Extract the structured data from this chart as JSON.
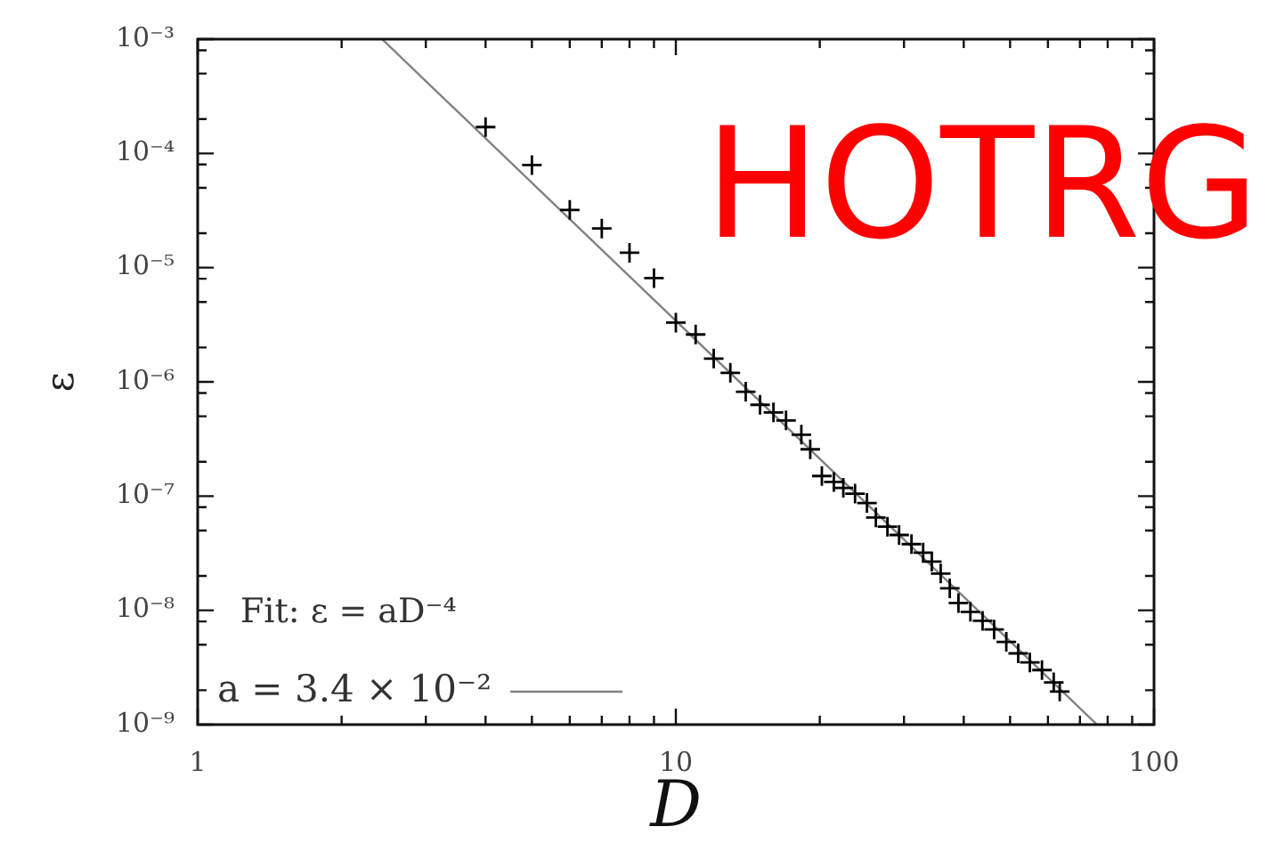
{
  "chart_data": {
    "type": "scatter",
    "xlabel": "D",
    "ylabel": "ε",
    "legend_title": "Fit: ε = aD⁻⁴",
    "legend": "bottom left",
    "annotations": [
      "HOTRG"
    ],
    "log": "xy",
    "grid": false,
    "marker": "cross",
    "xlim": [
      1,
      100
    ],
    "xticks": [
      1,
      {
        "value": 2,
        "label": null
      },
      {
        "value": 3,
        "label": null
      },
      {
        "value": 4,
        "label": null
      },
      {
        "value": 5,
        "label": null
      },
      {
        "value": 6,
        "label": null
      },
      {
        "value": 7,
        "label": null
      },
      {
        "value": 8,
        "label": null
      },
      {
        "value": 9,
        "label": null
      },
      10,
      {
        "value": 20,
        "label": null
      },
      {
        "value": 30,
        "label": null
      },
      {
        "value": 40,
        "label": null
      },
      {
        "value": 50,
        "label": null
      },
      {
        "value": 60,
        "label": null
      },
      {
        "value": 70,
        "label": null
      },
      {
        "value": 80,
        "label": null
      },
      {
        "value": 90,
        "label": null
      },
      100
    ],
    "ylim": [
      1e-09,
      0.001
    ],
    "yticks": [
      {
        "value": 1e-09,
        "label": "10⁻⁹"
      },
      {
        "value": 2e-09,
        "label": null
      },
      {
        "value": 5e-09,
        "label": null
      },
      {
        "value": 8e-09,
        "label": null
      },
      {
        "value": 1e-08,
        "label": "10⁻⁸"
      },
      {
        "value": 2e-08,
        "label": null
      },
      {
        "value": 5e-08,
        "label": null
      },
      {
        "value": 8e-08,
        "label": null
      },
      {
        "value": 1e-07,
        "label": "10⁻⁷"
      },
      {
        "value": 2e-07,
        "label": null
      },
      {
        "value": 5e-07,
        "label": null
      },
      {
        "value": 8e-07,
        "label": null
      },
      {
        "value": 1e-06,
        "label": "10⁻⁶"
      },
      {
        "value": 2e-06,
        "label": null
      },
      {
        "value": 5e-06,
        "label": null
      },
      {
        "value": 8e-06,
        "label": null
      },
      {
        "value": 1e-05,
        "label": "10⁻⁵"
      },
      {
        "value": 2e-05,
        "label": null
      },
      {
        "value": 5e-05,
        "label": null
      },
      {
        "value": 8e-05,
        "label": null
      },
      {
        "value": 0.0001,
        "label": "10⁻⁴"
      },
      {
        "value": 0.0002,
        "label": null
      },
      {
        "value": 0.0005,
        "label": null
      },
      {
        "value": 0.0008,
        "label": null
      },
      {
        "value": 0.001,
        "label": "10⁻³"
      }
    ],
    "series": [
      {
        "color": "#000000",
        "x": [
          4,
          5,
          6,
          7,
          8,
          9,
          10,
          11,
          12,
          13,
          14,
          15,
          16,
          17,
          18.3,
          19.1,
          20.2,
          21.4,
          22.4,
          23.7,
          25.1,
          26.2,
          27.7,
          29.3,
          31.1,
          32.9,
          34.3,
          35.8,
          37.4,
          39,
          41.3,
          43.8,
          46.3,
          49.1,
          52,
          55,
          58.3,
          61.7,
          63.5
        ],
        "values": [
          0.00017,
          7.9e-05,
          3.2e-05,
          2.2e-05,
          1.35e-05,
          8.1e-06,
          3.3e-06,
          2.6e-06,
          1.6e-06,
          1.2e-06,
          8.2e-07,
          6.3e-07,
          5.4e-07,
          4.6e-07,
          3.45e-07,
          2.57e-07,
          1.5e-07,
          1.33e-07,
          1.18e-07,
          1.05e-07,
          8.7e-08,
          6.5e-08,
          5.4e-08,
          4.57e-08,
          3.8e-08,
          3.2e-08,
          2.67e-08,
          2.1e-08,
          1.56e-08,
          1.16e-08,
          9.7e-09,
          8.1e-09,
          6.8e-09,
          5.3e-09,
          4.2e-09,
          3.5e-09,
          3e-09,
          2.34e-09,
          1.95e-09
        ]
      },
      {
        "type": "line",
        "name": "a = 3.4 × 10⁻²",
        "color": "#808080",
        "marker": "none",
        "x": [
          2.43,
          76
        ],
        "values": [
          0.001,
          1e-09
        ]
      }
    ]
  }
}
